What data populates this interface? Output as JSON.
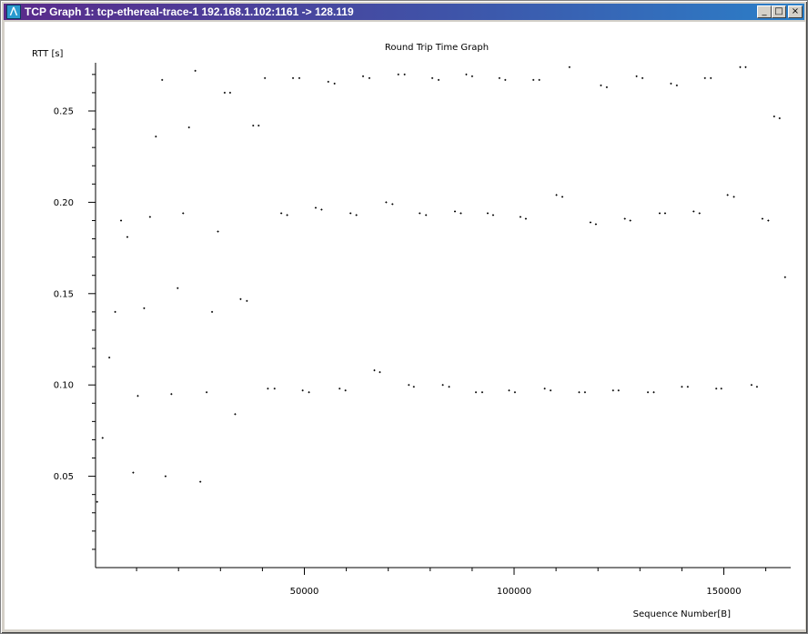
{
  "window": {
    "title": "TCP Graph 1: tcp-ethereal-trace-1 192.168.1.102:1161 -> 128.119",
    "icon": "app-logo-icon",
    "buttons": {
      "minimize": "_",
      "maximize": "□",
      "close": "×"
    }
  },
  "chart_data": {
    "type": "scatter",
    "title": "Round Trip Time Graph",
    "xlabel": "Sequence Number[B]",
    "ylabel": "RTT [s]",
    "xlim": [
      0,
      167000
    ],
    "ylim": [
      0.0,
      0.275
    ],
    "x_ticks": [
      {
        "value": 50000,
        "label": "50000"
      },
      {
        "value": 100000,
        "label": "100000"
      },
      {
        "value": 150000,
        "label": "150000"
      }
    ],
    "y_ticks": [
      {
        "value": 0.05,
        "label": "0.05"
      },
      {
        "value": 0.1,
        "label": "0.10"
      },
      {
        "value": 0.15,
        "label": "0.15"
      },
      {
        "value": 0.2,
        "label": "0.20"
      },
      {
        "value": 0.25,
        "label": "0.25"
      }
    ],
    "grid": false,
    "points": [
      [
        600,
        0.036
      ],
      [
        1900,
        0.071
      ],
      [
        3500,
        0.115
      ],
      [
        4900,
        0.14
      ],
      [
        6300,
        0.19
      ],
      [
        7800,
        0.181
      ],
      [
        9200,
        0.052
      ],
      [
        10300,
        0.094
      ],
      [
        11800,
        0.142
      ],
      [
        13200,
        0.192
      ],
      [
        14600,
        0.236
      ],
      [
        16100,
        0.267
      ],
      [
        16900,
        0.05
      ],
      [
        18300,
        0.095
      ],
      [
        19800,
        0.153
      ],
      [
        21100,
        0.194
      ],
      [
        22500,
        0.241
      ],
      [
        24000,
        0.272
      ],
      [
        25200,
        0.047
      ],
      [
        26700,
        0.096
      ],
      [
        28000,
        0.14
      ],
      [
        29400,
        0.184
      ],
      [
        31000,
        0.26
      ],
      [
        32300,
        0.26
      ],
      [
        33500,
        0.084
      ],
      [
        34800,
        0.147
      ],
      [
        36300,
        0.146
      ],
      [
        37800,
        0.242
      ],
      [
        39100,
        0.242
      ],
      [
        40600,
        0.268
      ],
      [
        41300,
        0.098
      ],
      [
        42900,
        0.098
      ],
      [
        44500,
        0.194
      ],
      [
        45900,
        0.193
      ],
      [
        47300,
        0.268
      ],
      [
        48800,
        0.268
      ],
      [
        49600,
        0.097
      ],
      [
        51100,
        0.096
      ],
      [
        52700,
        0.197
      ],
      [
        54100,
        0.196
      ],
      [
        55700,
        0.266
      ],
      [
        57200,
        0.265
      ],
      [
        58400,
        0.098
      ],
      [
        59800,
        0.097
      ],
      [
        61000,
        0.194
      ],
      [
        62400,
        0.193
      ],
      [
        64000,
        0.269
      ],
      [
        65500,
        0.268
      ],
      [
        66700,
        0.108
      ],
      [
        68000,
        0.107
      ],
      [
        69500,
        0.2
      ],
      [
        71000,
        0.199
      ],
      [
        72400,
        0.27
      ],
      [
        73900,
        0.27
      ],
      [
        74900,
        0.1
      ],
      [
        76100,
        0.099
      ],
      [
        77500,
        0.194
      ],
      [
        79000,
        0.193
      ],
      [
        80500,
        0.268
      ],
      [
        82000,
        0.267
      ],
      [
        83000,
        0.1
      ],
      [
        84500,
        0.099
      ],
      [
        85900,
        0.195
      ],
      [
        87300,
        0.194
      ],
      [
        88600,
        0.27
      ],
      [
        90000,
        0.269
      ],
      [
        90900,
        0.096
      ],
      [
        92400,
        0.096
      ],
      [
        93700,
        0.194
      ],
      [
        95000,
        0.193
      ],
      [
        96500,
        0.268
      ],
      [
        97900,
        0.267
      ],
      [
        98800,
        0.097
      ],
      [
        100200,
        0.096
      ],
      [
        101500,
        0.192
      ],
      [
        102800,
        0.191
      ],
      [
        104600,
        0.267
      ],
      [
        106000,
        0.267
      ],
      [
        107300,
        0.098
      ],
      [
        108700,
        0.097
      ],
      [
        110100,
        0.204
      ],
      [
        111500,
        0.203
      ],
      [
        113200,
        0.274
      ],
      [
        115500,
        0.096
      ],
      [
        116900,
        0.096
      ],
      [
        118200,
        0.189
      ],
      [
        119500,
        0.188
      ],
      [
        120700,
        0.264
      ],
      [
        122100,
        0.263
      ],
      [
        123600,
        0.097
      ],
      [
        124900,
        0.097
      ],
      [
        126400,
        0.191
      ],
      [
        127700,
        0.19
      ],
      [
        129200,
        0.269
      ],
      [
        130600,
        0.268
      ],
      [
        131900,
        0.096
      ],
      [
        133300,
        0.096
      ],
      [
        134700,
        0.194
      ],
      [
        136000,
        0.194
      ],
      [
        137400,
        0.265
      ],
      [
        138800,
        0.264
      ],
      [
        140000,
        0.099
      ],
      [
        141400,
        0.099
      ],
      [
        142800,
        0.195
      ],
      [
        144200,
        0.194
      ],
      [
        145500,
        0.268
      ],
      [
        146900,
        0.268
      ],
      [
        148200,
        0.098
      ],
      [
        149400,
        0.098
      ],
      [
        150900,
        0.204
      ],
      [
        152400,
        0.203
      ],
      [
        153900,
        0.274
      ],
      [
        155200,
        0.274
      ],
      [
        156600,
        0.1
      ],
      [
        157900,
        0.099
      ],
      [
        159200,
        0.191
      ],
      [
        160600,
        0.19
      ],
      [
        162000,
        0.247
      ],
      [
        163300,
        0.246
      ],
      [
        164600,
        0.159
      ]
    ]
  }
}
